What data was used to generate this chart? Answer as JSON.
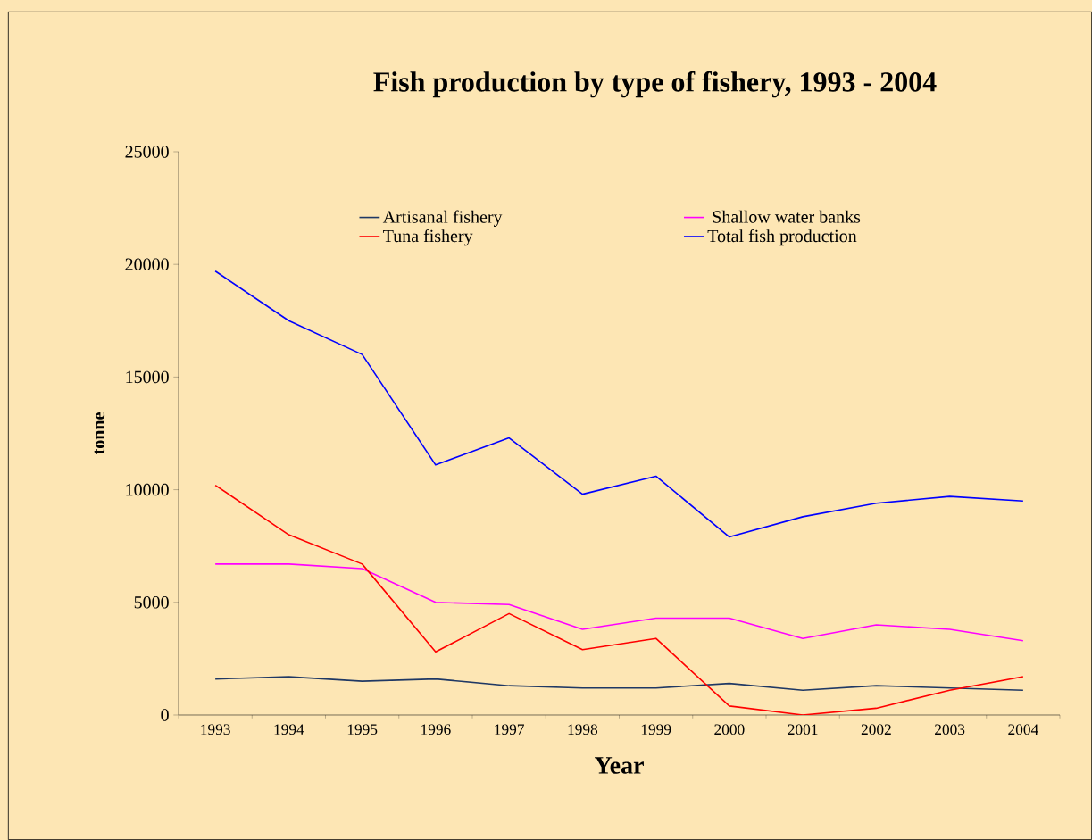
{
  "chart_data": {
    "type": "line",
    "title": "Fish production by type of fishery, 1993 - 2004",
    "xlabel": "Year",
    "ylabel": "tonne",
    "categories": [
      "1993",
      "1994",
      "1995",
      "1996",
      "1997",
      "1998",
      "1999",
      "2000",
      "2001",
      "2002",
      "2003",
      "2004"
    ],
    "ylim": [
      0,
      25000
    ],
    "yticks": [
      0,
      5000,
      10000,
      15000,
      20000,
      25000
    ],
    "grid": false,
    "legend": "top",
    "marker": "none",
    "series": [
      {
        "name": "Artisanal fishery",
        "color": "#1f3864",
        "values": [
          1600,
          1700,
          1500,
          1600,
          1300,
          1200,
          1200,
          1400,
          1100,
          1300,
          1200,
          1100
        ]
      },
      {
        "name": "  Shallow water banks",
        "color": "#ff00ff",
        "values": [
          6700,
          6700,
          6500,
          5000,
          4900,
          3800,
          4300,
          4300,
          3400,
          4000,
          3800,
          3300
        ]
      },
      {
        "name": "Tuna fishery",
        "color": "#ff0000",
        "values": [
          10200,
          8000,
          6700,
          2800,
          4500,
          2900,
          3400,
          400,
          0,
          300,
          1100,
          1700
        ]
      },
      {
        "name": "Total fish production",
        "color": "#0000ff",
        "values": [
          19700,
          17500,
          16000,
          11100,
          12300,
          9800,
          10600,
          7900,
          8800,
          9400,
          9700,
          9500
        ]
      }
    ]
  }
}
